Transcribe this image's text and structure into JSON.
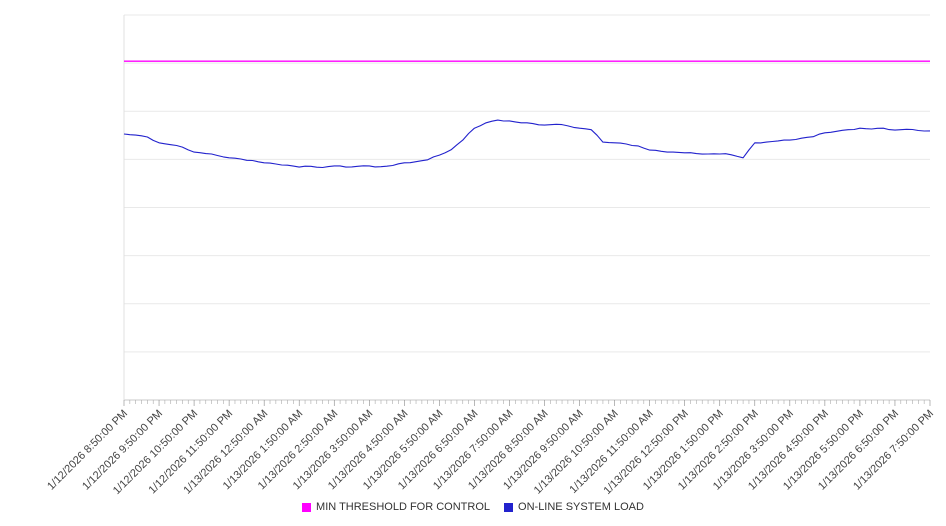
{
  "chart_data": {
    "type": "line",
    "title": "",
    "xlabel": "",
    "ylabel": "",
    "grid": "horizontal",
    "y_axis_tick_labels_visible": false,
    "ylim": [
      0,
      100
    ],
    "y_unit_note": "y-axis has no visible labels; series values estimated as percent of plot height from gridlines",
    "x_tick_labels": [
      "1/12/2026 8:50:00 PM",
      "1/12/2026 9:50:00 PM",
      "1/12/2026 10:50:00 PM",
      "1/12/2026 11:50:00 PM",
      "1/13/2026 12:50:00 AM",
      "1/13/2026 1:50:00 AM",
      "1/13/2026 2:50:00 AM",
      "1/13/2026 3:50:00 AM",
      "1/13/2026 4:50:00 AM",
      "1/13/2026 5:50:00 AM",
      "1/13/2026 6:50:00 AM",
      "1/13/2026 7:50:00 AM",
      "1/13/2026 8:50:00 AM",
      "1/13/2026 9:50:00 AM",
      "1/13/2026 10:50:00 AM",
      "1/13/2026 11:50:00 AM",
      "1/13/2026 12:50:00 PM",
      "1/13/2026 1:50:00 PM",
      "1/13/2026 2:50:00 PM",
      "1/13/2026 3:50:00 PM",
      "1/13/2026 4:50:00 PM",
      "1/13/2026 5:50:00 PM",
      "1/13/2026 6:50:00 PM",
      "1/13/2026 7:50:00 PM"
    ],
    "x_minor_ticks_per_hour": 6,
    "legend_position": "bottom-center",
    "series": [
      {
        "name": "MIN THRESHOLD FOR CONTROL",
        "color": "#ff00ff",
        "style": "constant-horizontal-line",
        "value": 88
      },
      {
        "name": "ON-LINE SYSTEM LOAD",
        "color": "#2222cd",
        "style": "line",
        "sample_interval_minutes": 20,
        "start_label": "1/12/2026 8:50:00 PM",
        "values": [
          69.1,
          68.8,
          68.3,
          66.8,
          66.3,
          65.7,
          64.4,
          64.0,
          63.5,
          62.9,
          62.6,
          62.2,
          61.6,
          61.3,
          61.0,
          60.5,
          60.7,
          60.4,
          60.8,
          60.5,
          60.7,
          60.8,
          60.6,
          60.9,
          61.6,
          61.9,
          62.4,
          63.6,
          65.0,
          67.5,
          70.6,
          72.0,
          72.7,
          72.5,
          72.0,
          71.8,
          71.4,
          71.6,
          71.2,
          70.6,
          70.2,
          67.0,
          66.8,
          66.5,
          66.0,
          64.9,
          64.6,
          64.4,
          64.2,
          64.0,
          63.9,
          63.9,
          63.7,
          62.9,
          66.8,
          67.0,
          67.3,
          67.5,
          68.0,
          68.4,
          69.4,
          69.8,
          70.2,
          70.6,
          70.4,
          70.6,
          70.1,
          70.3,
          70.0,
          69.9
        ]
      }
    ]
  },
  "legend": {
    "items": [
      {
        "label": "MIN THRESHOLD FOR CONTROL",
        "color": "#ff00ff"
      },
      {
        "label": "ON-LINE SYSTEM LOAD",
        "color": "#2222cd"
      }
    ]
  }
}
